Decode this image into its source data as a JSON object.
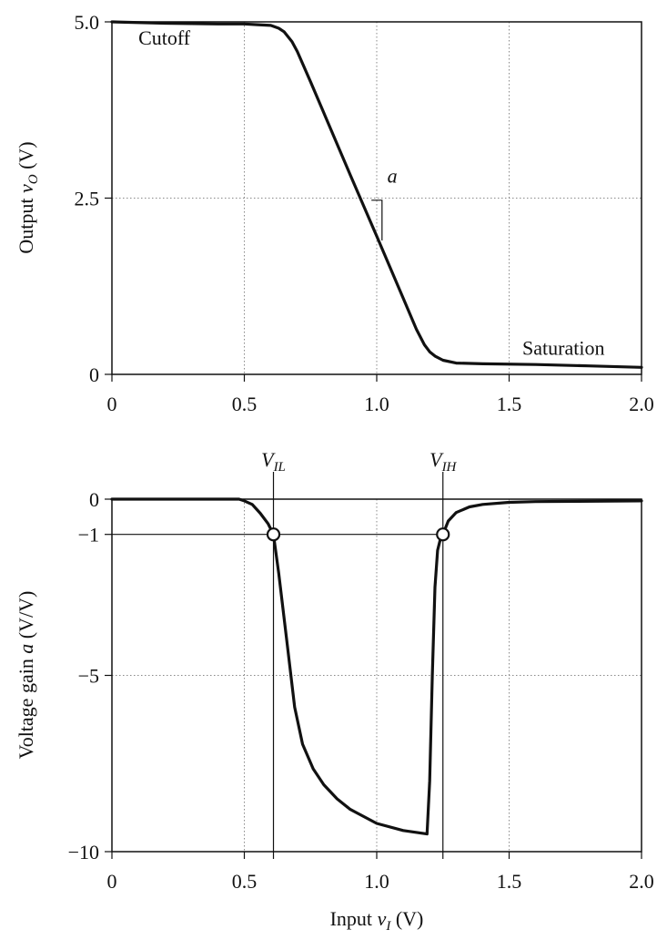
{
  "chart_data": [
    {
      "type": "line",
      "xlabel": "",
      "ylabel": {
        "prefix": "Output ",
        "var": "v",
        "sub": "O",
        "suffix": " (V)"
      },
      "xlim": [
        0,
        2.0
      ],
      "ylim": [
        0,
        5.0
      ],
      "xticks": [
        {
          "value": 0,
          "label": "0"
        },
        {
          "value": 0.5,
          "label": "0.5"
        },
        {
          "value": 1.0,
          "label": "1.0"
        },
        {
          "value": 1.5,
          "label": "1.5"
        },
        {
          "value": 2.0,
          "label": "2.0"
        }
      ],
      "yticks": [
        {
          "value": 0,
          "label": "0"
        },
        {
          "value": 2.5,
          "label": "2.5"
        },
        {
          "value": 5.0,
          "label": "5.0"
        }
      ],
      "grid": {
        "x": [
          0.5,
          1.0,
          1.5
        ],
        "y": [
          2.5
        ]
      },
      "annotations": {
        "cutoff": {
          "text": "Cutoff",
          "x": 0.1,
          "y": 4.78
        },
        "saturation": {
          "text": "Saturation",
          "x": 1.55,
          "y": 0.38
        },
        "slope": {
          "text": "a",
          "x": 1.04,
          "y": 2.72
        }
      },
      "series": [
        {
          "x": [
            0,
            0.2,
            0.4,
            0.5,
            0.55,
            0.6,
            0.63,
            0.65,
            0.68,
            0.7,
            0.75,
            0.8,
            0.9,
            1.0,
            1.1,
            1.15,
            1.18,
            1.2,
            1.22,
            1.25,
            1.3,
            1.4,
            1.6,
            1.8,
            2.0
          ],
          "y": [
            5.0,
            4.98,
            4.97,
            4.97,
            4.96,
            4.95,
            4.91,
            4.86,
            4.72,
            4.58,
            4.15,
            3.71,
            2.83,
            1.96,
            1.08,
            0.64,
            0.42,
            0.32,
            0.26,
            0.2,
            0.16,
            0.15,
            0.14,
            0.12,
            0.1
          ]
        }
      ]
    },
    {
      "type": "line",
      "xlabel": {
        "prefix": "Input ",
        "var": "v",
        "sub": "I",
        "suffix": " (V)"
      },
      "ylabel": {
        "prefix": "Voltage gain ",
        "var": "a",
        "sub": "",
        "suffix": "  (V/V)"
      },
      "xlim": [
        0,
        2.0
      ],
      "ylim": [
        -10,
        0
      ],
      "xticks": [
        {
          "value": 0,
          "label": "0"
        },
        {
          "value": 0.5,
          "label": "0.5"
        },
        {
          "value": 1.0,
          "label": "1.0"
        },
        {
          "value": 1.5,
          "label": "1.5"
        },
        {
          "value": 2.0,
          "label": "2.0"
        }
      ],
      "yticks": [
        {
          "value": 0,
          "label": "0"
        },
        {
          "value": -1,
          "label": "−1"
        },
        {
          "value": -5,
          "label": "−5"
        },
        {
          "value": -10,
          "label": "−10"
        }
      ],
      "grid": {
        "x": [
          0.5,
          1.0,
          1.5
        ],
        "y": [
          -5
        ]
      },
      "markers": [
        {
          "name": "VIL",
          "label": "V",
          "sub": "IL",
          "x": 0.61,
          "y": -1
        },
        {
          "name": "VIH",
          "label": "V",
          "sub": "IH",
          "x": 1.25,
          "y": -1
        }
      ],
      "series": [
        {
          "x": [
            0,
            0.3,
            0.48,
            0.5,
            0.53,
            0.56,
            0.59,
            0.61,
            0.63,
            0.66,
            0.69,
            0.72,
            0.76,
            0.8,
            0.85,
            0.9,
            1.0,
            1.1,
            1.19,
            1.2,
            1.21,
            1.22,
            1.23,
            1.24,
            1.25,
            1.27,
            1.3,
            1.35,
            1.4,
            1.5,
            1.6,
            2.0
          ],
          "y": [
            0,
            0,
            0,
            -0.05,
            -0.15,
            -0.4,
            -0.7,
            -1.0,
            -2.1,
            -4.0,
            -5.9,
            -6.95,
            -7.65,
            -8.1,
            -8.5,
            -8.8,
            -9.2,
            -9.4,
            -9.5,
            -8.0,
            -5.0,
            -2.5,
            -1.45,
            -1.15,
            -1.0,
            -0.62,
            -0.38,
            -0.22,
            -0.15,
            -0.09,
            -0.07,
            -0.05
          ]
        }
      ]
    }
  ]
}
